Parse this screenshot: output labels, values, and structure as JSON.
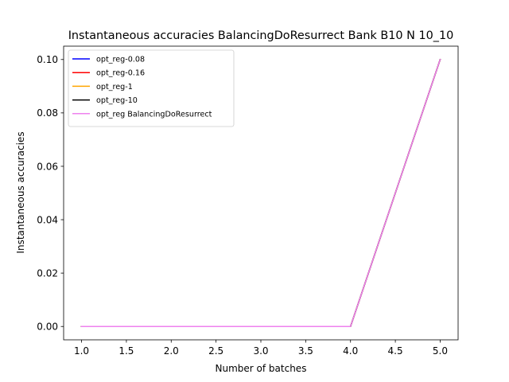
{
  "chart_data": {
    "type": "line",
    "title": "Instantaneous accuracies BalancingDoResurrect Bank B10 N 10_10",
    "xlabel": "Number of batches",
    "ylabel": "Instantaneous accuracies",
    "x": [
      1,
      2,
      3,
      4,
      5
    ],
    "xlim": [
      0.8,
      5.2
    ],
    "ylim": [
      -0.005,
      0.105
    ],
    "xticks": [
      1.0,
      1.5,
      2.0,
      2.5,
      3.0,
      3.5,
      4.0,
      4.5,
      5.0
    ],
    "xtick_labels": [
      "1.0",
      "1.5",
      "2.0",
      "2.5",
      "3.0",
      "3.5",
      "4.0",
      "4.5",
      "5.0"
    ],
    "yticks": [
      0.0,
      0.02,
      0.04,
      0.06,
      0.08,
      0.1
    ],
    "ytick_labels": [
      "0.00",
      "0.02",
      "0.04",
      "0.06",
      "0.08",
      "0.10"
    ],
    "grid": false,
    "legend_position": "top-left",
    "series": [
      {
        "name": "opt_reg-0.08",
        "color": "#0000ff",
        "values": [
          0,
          0,
          0,
          0,
          0.1
        ]
      },
      {
        "name": "opt_reg-0.16",
        "color": "#ff0000",
        "values": [
          0,
          0,
          0,
          0,
          0.1
        ]
      },
      {
        "name": "opt_reg-1",
        "color": "#ffa500",
        "values": [
          0,
          0,
          0,
          0,
          0.1
        ]
      },
      {
        "name": "opt_reg-10",
        "color": "#000000",
        "values": [
          0,
          0,
          0,
          0,
          0.1
        ]
      },
      {
        "name": "opt_reg BalancingDoResurrect",
        "color": "#ee82ee",
        "values": [
          0,
          0,
          0,
          0,
          0.1
        ]
      }
    ]
  }
}
